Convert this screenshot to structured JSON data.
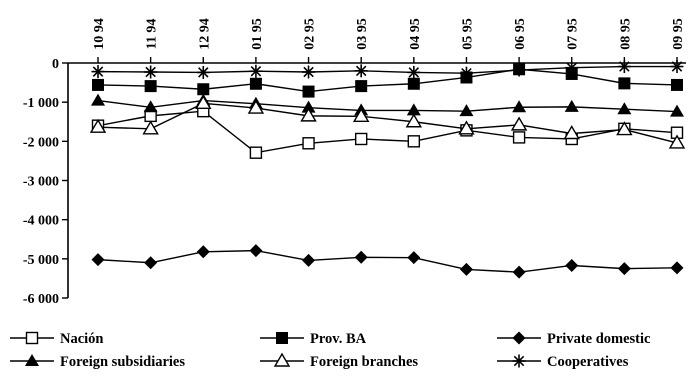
{
  "chart_data": {
    "type": "line",
    "title": "",
    "xlabel": "",
    "ylabel": "",
    "categories": [
      "10 94",
      "11 94",
      "12 94",
      "01 95",
      "02 95",
      "03 95",
      "04 95",
      "05 95",
      "06 95",
      "07 95",
      "08 95",
      "09 95"
    ],
    "ylim": [
      -6000,
      0
    ],
    "yticks": [
      0,
      -1000,
      -2000,
      -3000,
      -4000,
      -5000,
      -6000
    ],
    "ytick_labels": [
      "0",
      "-1 000",
      "-2 000",
      "-3 000",
      "-4 000",
      "-5 000",
      "-6 000"
    ],
    "x_axis_position": "top",
    "grid": false,
    "legend_position": "bottom",
    "series": [
      {
        "name": "Nación",
        "marker": "square-open",
        "values": [
          -1600,
          -1350,
          -1230,
          -2290,
          -2050,
          -1940,
          -2000,
          -1720,
          -1900,
          -1940,
          -1680,
          -1780
        ]
      },
      {
        "name": "Prov. BA",
        "marker": "square-filled",
        "values": [
          -560,
          -590,
          -670,
          -530,
          -730,
          -590,
          -530,
          -370,
          -160,
          -280,
          -520,
          -560
        ]
      },
      {
        "name": "Private domestic",
        "marker": "diamond-filled",
        "values": [
          -5020,
          -5100,
          -4820,
          -4790,
          -5040,
          -4960,
          -4970,
          -5270,
          -5340,
          -5170,
          -5250,
          -5230
        ]
      },
      {
        "name": "Foreign subsidiaries",
        "marker": "triangle-filled",
        "values": [
          -960,
          -1130,
          -960,
          -1040,
          -1140,
          -1210,
          -1210,
          -1230,
          -1130,
          -1120,
          -1180,
          -1240
        ]
      },
      {
        "name": "Foreign branches",
        "marker": "triangle-open",
        "values": [
          -1640,
          -1680,
          -1030,
          -1150,
          -1350,
          -1360,
          -1500,
          -1680,
          -1580,
          -1800,
          -1700,
          -2040
        ]
      },
      {
        "name": "Cooperatives",
        "marker": "asterisk",
        "values": [
          -220,
          -230,
          -240,
          -210,
          -230,
          -200,
          -240,
          -260,
          -180,
          -120,
          -90,
          -90
        ]
      }
    ]
  }
}
